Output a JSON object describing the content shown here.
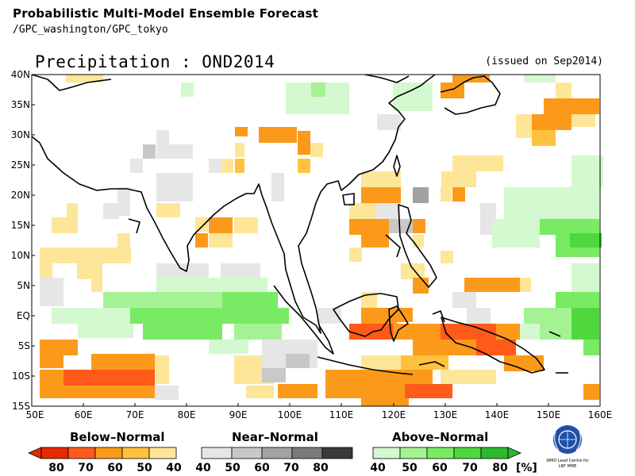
{
  "header": {
    "title": "Probabilistic Multi-Model Ensemble Forecast",
    "subtitle": "/GPC_washington/GPC_tokyo"
  },
  "map": {
    "title": "Precipitation : OND2014",
    "issued": "(issued on Sep2014)",
    "lat_labels": [
      "40N",
      "35N",
      "30N",
      "25N",
      "20N",
      "15N",
      "10N",
      "5N",
      "EQ",
      "5S",
      "10S",
      "15S"
    ],
    "lon_labels": [
      "50E",
      "60E",
      "70E",
      "80E",
      "90E",
      "100E",
      "110E",
      "120E",
      "130E",
      "140E",
      "150E",
      "160E"
    ]
  },
  "legend": {
    "below": {
      "title": "Below–Normal",
      "ticks": [
        "80",
        "70",
        "60",
        "50",
        "40"
      ]
    },
    "near": {
      "title": "Near–Normal",
      "ticks": [
        "40",
        "50",
        "60",
        "70",
        "80"
      ]
    },
    "above": {
      "title": "Above–Normal",
      "ticks": [
        "40",
        "50",
        "60",
        "70",
        "80"
      ],
      "unit": "[%]"
    },
    "colors": {
      "below": [
        "#e52a00",
        "#ff5a1a",
        "#fb9a1a",
        "#fec23e",
        "#fee699"
      ],
      "near": [
        "#e6e6e6",
        "#c8c8c8",
        "#a2a2a2",
        "#7a7a7a",
        "#393939"
      ],
      "above": [
        "#d4f8cf",
        "#a5f294",
        "#78ea63",
        "#4ed83d",
        "#2cb92c"
      ]
    }
  },
  "logo": {
    "text1": "WMO Lead Centre for",
    "text2": "LRF MME"
  }
}
